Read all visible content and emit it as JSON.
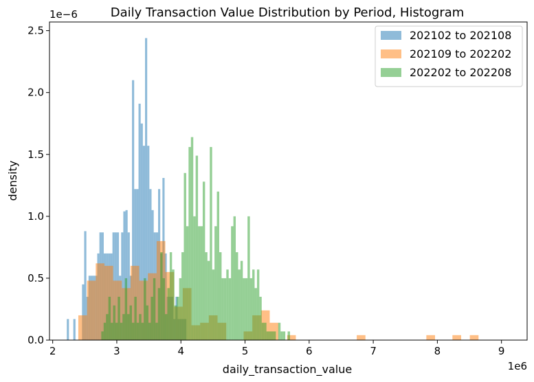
{
  "chart_data": {
    "type": "bar",
    "subtype": "histogram",
    "title": "Daily Transaction Value Distribution by Period, Histogram",
    "xlabel": "daily_transaction_value",
    "ylabel": "density",
    "x_offset_label": "1e6",
    "y_offset_label": "1e−6",
    "xlim": [
      1.95,
      9.4
    ],
    "ylim": [
      0,
      2.57
    ],
    "x_scale": 1000000,
    "y_scale": 1e-06,
    "xticks": [
      2,
      3,
      4,
      5,
      6,
      7,
      8,
      9
    ],
    "xtick_labels": [
      "2",
      "3",
      "4",
      "5",
      "6",
      "7",
      "8",
      "9"
    ],
    "yticks": [
      0.0,
      0.5,
      1.0,
      1.5,
      2.0,
      2.5
    ],
    "ytick_labels": [
      "0.0",
      "0.5",
      "1.0",
      "1.5",
      "2.0",
      "2.5"
    ],
    "grid": false,
    "legend_position": "top-right",
    "series": [
      {
        "name": "202102 to 202108",
        "color": "#1f77b4",
        "opacity": 0.5,
        "bin_start": 2.22,
        "bin_width": 0.0339,
        "values": [
          0.17,
          0,
          0,
          0.17,
          0,
          0,
          0,
          0.45,
          0.88,
          0.35,
          0.52,
          0.52,
          0.52,
          0.52,
          0.7,
          0.87,
          0.87,
          0.7,
          0.7,
          0.7,
          0.7,
          0.87,
          0.87,
          0.87,
          0.52,
          0.87,
          1.04,
          1.05,
          0.87,
          0.52,
          2.1,
          1.22,
          1.22,
          1.91,
          1.75,
          1.57,
          2.44,
          1.57,
          1.22,
          1.05,
          0.87,
          0.87,
          1.22,
          0.7,
          1.31,
          0.7,
          0.35,
          0.35,
          0.35,
          0.17,
          0.35,
          0.17,
          0.17,
          0.17,
          0.17
        ]
      },
      {
        "name": "202109 to 202202",
        "color": "#ff7f0e",
        "opacity": 0.5,
        "bin_start": 2.4,
        "bin_width": 0.1357,
        "values": [
          0.2,
          0.48,
          0.62,
          0.6,
          0.48,
          0.42,
          0.6,
          0.48,
          0.54,
          0.8,
          0.55,
          0.27,
          0.42,
          0.12,
          0.14,
          0.2,
          0.14,
          0,
          0,
          0.07,
          0.2,
          0.24,
          0.14,
          0,
          0.04,
          0,
          0,
          0,
          0,
          0,
          0,
          0,
          0.04,
          0,
          0,
          0,
          0,
          0,
          0,
          0,
          0.04,
          0,
          0,
          0.04,
          0,
          0.04,
          0,
          0,
          0,
          0,
          0,
          0,
          0,
          0,
          0,
          0,
          0,
          0,
          0,
          0,
          0,
          0,
          0.07,
          0,
          0.04
        ]
      },
      {
        "name": "202202 to 202208",
        "color": "#2ca02c",
        "opacity": 0.5,
        "bin_start": 2.5,
        "bin_width": 0.0368,
        "values": [
          0,
          0,
          0,
          0,
          0,
          0,
          0,
          0.07,
          0.14,
          0.21,
          0.35,
          0.14,
          0.28,
          0.14,
          0.35,
          0.14,
          0.21,
          0.5,
          0.21,
          0.28,
          0.14,
          0.35,
          0.14,
          0.21,
          0.14,
          0.5,
          0.28,
          0.14,
          0.35,
          0.5,
          0.14,
          0.42,
          0.71,
          0.5,
          0.21,
          0.42,
          0.71,
          0.57,
          0.28,
          0.35,
          0.5,
          0.71,
          1.35,
          0.92,
          1.56,
          1.64,
          1.0,
          1.49,
          0.92,
          0.92,
          1.28,
          0.71,
          0.64,
          1.56,
          0.57,
          0.92,
          1.2,
          0.71,
          0.5,
          0.5,
          0.57,
          0.5,
          0.92,
          1.0,
          0.71,
          0.57,
          0.64,
          0.5,
          0.5,
          1.0,
          0.5,
          0.57,
          0.42,
          0.57,
          0.35,
          0.14,
          0.14,
          0.07,
          0.07,
          0.07,
          0.07,
          0,
          0.14,
          0.07,
          0.07,
          0,
          0.07
        ]
      }
    ]
  }
}
